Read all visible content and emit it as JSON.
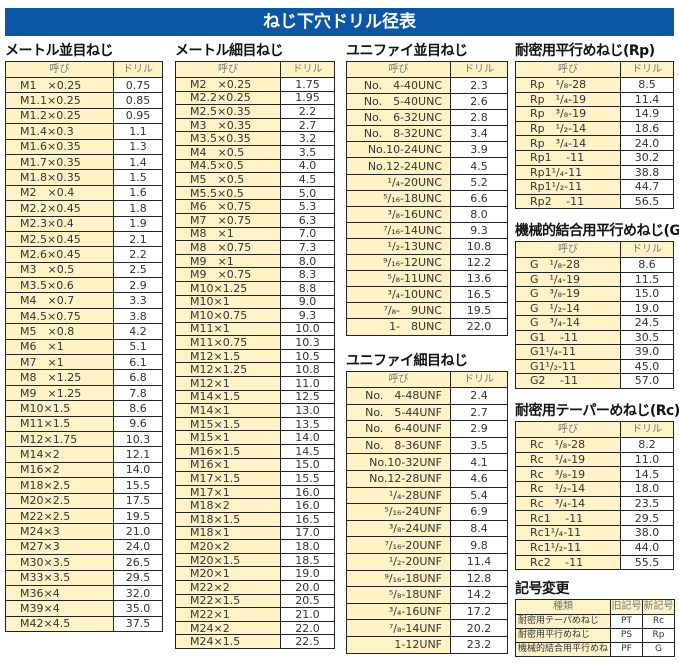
{
  "title": "ねじ下穴ドリル径表",
  "header": {
    "name": "呼び",
    "drill": "ドリル"
  },
  "tables": [
    {
      "title": "メートル並目ねじ",
      "rows": [
        [
          "M1　×0.25",
          "0.75"
        ],
        [
          "M1.1×0.25",
          "0.85"
        ],
        [
          "M1.2×0.25",
          "0.95"
        ],
        [
          "M1.4×0.3",
          "1.1"
        ],
        [
          "M1.6×0.35",
          "1.3"
        ],
        [
          "M1.7×0.35",
          "1.4"
        ],
        [
          "M1.8×0.35",
          "1.5"
        ],
        [
          "M2　×0.4",
          "1.6"
        ],
        [
          "M2.2×0.45",
          "1.8"
        ],
        [
          "M2.3×0.4",
          "1.9"
        ],
        [
          "M2.5×0.45",
          "2.1"
        ],
        [
          "M2.6×0.45",
          "2.2"
        ],
        [
          "M3　×0.5",
          "2.5"
        ],
        [
          "M3.5×0.6",
          "2.9"
        ],
        [
          "M4　×0.7",
          "3.3"
        ],
        [
          "M4.5×0.75",
          "3.8"
        ],
        [
          "M5　×0.8",
          "4.2"
        ],
        [
          "M6　×1",
          "5.1"
        ],
        [
          "M7　×1",
          "6.1"
        ],
        [
          "M8　×1.25",
          "6.8"
        ],
        [
          "M9　×1.25",
          "7.8"
        ],
        [
          "M10×1.5",
          "8.6"
        ],
        [
          "M11×1.5",
          "9.6"
        ],
        [
          "M12×1.75",
          "10.3"
        ],
        [
          "M14×2",
          "12.1"
        ],
        [
          "M16×2",
          "14.0"
        ],
        [
          "M18×2.5",
          "15.5"
        ],
        [
          "M20×2.5",
          "17.5"
        ],
        [
          "M22×2.5",
          "19.5"
        ],
        [
          "M24×3",
          "21.0"
        ],
        [
          "M27×3",
          "24.0"
        ],
        [
          "M30×3.5",
          "26.5"
        ],
        [
          "M33×3.5",
          "29.5"
        ],
        [
          "M36×4",
          "32.0"
        ],
        [
          "M39×4",
          "35.0"
        ],
        [
          "M42×4.5",
          "37.5"
        ]
      ]
    },
    {
      "title": "メートル細目ねじ",
      "rows": [
        [
          "M2　×0.25",
          "1.75"
        ],
        [
          "M2.2×0.25",
          "1.95"
        ],
        [
          "M2.5×0.35",
          "2.2"
        ],
        [
          "M3　×0.35",
          "2.7"
        ],
        [
          "M3.5×0.35",
          "3.2"
        ],
        [
          "M4　×0.5",
          "3.5"
        ],
        [
          "M4.5×0.5",
          "4.0"
        ],
        [
          "M5　×0.5",
          "4.5"
        ],
        [
          "M5.5×0.5",
          "5.0"
        ],
        [
          "M6　×0.75",
          "5.3"
        ],
        [
          "M7　×0.75",
          "6.3"
        ],
        [
          "M8　×1",
          "7.0"
        ],
        [
          "M8　×0.75",
          "7.3"
        ],
        [
          "M9　×1",
          "8.0"
        ],
        [
          "M9　×0.75",
          "8.3"
        ],
        [
          "M10×1.25",
          "8.8"
        ],
        [
          "M10×1",
          "9.0"
        ],
        [
          "M10×0.75",
          "9.3"
        ],
        [
          "M11×1",
          "10.0"
        ],
        [
          "M11×0.75",
          "10.3"
        ],
        [
          "M12×1.5",
          "10.5"
        ],
        [
          "M12×1.25",
          "10.8"
        ],
        [
          "M12×1",
          "11.0"
        ],
        [
          "M14×1.5",
          "12.5"
        ],
        [
          "M14×1",
          "13.0"
        ],
        [
          "M15×1.5",
          "13.5"
        ],
        [
          "M15×1",
          "14.0"
        ],
        [
          "M16×1.5",
          "14.5"
        ],
        [
          "M16×1",
          "15.0"
        ],
        [
          "M17×1.5",
          "15.5"
        ],
        [
          "M17×1",
          "16.0"
        ],
        [
          "M18×2",
          "16.0"
        ],
        [
          "M18×1.5",
          "16.5"
        ],
        [
          "M18×1",
          "17.0"
        ],
        [
          "M20×2",
          "18.0"
        ],
        [
          "M20×1.5",
          "18.5"
        ],
        [
          "M20×1",
          "19.0"
        ],
        [
          "M22×2",
          "20.0"
        ],
        [
          "M22×1.5",
          "20.5"
        ],
        [
          "M22×1",
          "21.0"
        ],
        [
          "M24×2",
          "22.0"
        ],
        [
          "M24×1.5",
          "22.5"
        ]
      ]
    },
    {
      "title": "ユニファイ並目ねじ",
      "rows": [
        [
          "No.　4-40UNC",
          "2.3"
        ],
        [
          "No.　5-40UNC",
          "2.6"
        ],
        [
          "No.　6-32UNC",
          "2.8"
        ],
        [
          "No.　8-32UNC",
          "3.4"
        ],
        [
          "No.10-24UNC",
          "3.9"
        ],
        [
          "No.12-24UNC",
          "4.5"
        ],
        [
          "¹/₄-20UNC",
          "5.2"
        ],
        [
          "⁵/₁₆-18UNC",
          "6.6"
        ],
        [
          "³/₈-16UNC",
          "8.0"
        ],
        [
          "⁷/₁₆-14UNC",
          "9.3"
        ],
        [
          "¹/₂-13UNC",
          "10.8"
        ],
        [
          "⁹/₁₆-12UNC",
          "12.2"
        ],
        [
          "⁵/₈-11UNC",
          "13.6"
        ],
        [
          "³/₄-10UNC",
          "16.5"
        ],
        [
          "⁷/₈-　9UNC",
          "19.5"
        ],
        [
          "1-　8UNC",
          "22.0"
        ]
      ]
    },
    {
      "title": "ユニファイ細目ねじ",
      "rows": [
        [
          "No.　4-48UNF",
          "2.4"
        ],
        [
          "No.　5-44UNF",
          "2.7"
        ],
        [
          "No.　6-40UNF",
          "2.9"
        ],
        [
          "No.　8-36UNF",
          "3.5"
        ],
        [
          "No.10-32UNF",
          "4.1"
        ],
        [
          "No.12-28UNF",
          "4.6"
        ],
        [
          "¹/₄-28UNF",
          "5.4"
        ],
        [
          "⁵/₁₆-24UNF",
          "6.9"
        ],
        [
          "³/₈-24UNF",
          "8.4"
        ],
        [
          "⁷/₁₆-20UNF",
          "9.8"
        ],
        [
          "¹/₂-20UNF",
          "11.4"
        ],
        [
          "⁹/₁₆-18UNF",
          "12.8"
        ],
        [
          "⁵/₈-18UNF",
          "14.2"
        ],
        [
          "³/₄-16UNF",
          "17.2"
        ],
        [
          "⁷/₈-14UNF",
          "20.2"
        ],
        [
          "1-12UNF",
          "23.2"
        ]
      ]
    },
    {
      "title": "耐密用平行めねじ(Rp)",
      "rows": [
        [
          "Rp　¹/₈-28",
          "8.5"
        ],
        [
          "Rp　¹/₄-19",
          "11.4"
        ],
        [
          "Rp　³/₈-19",
          "14.9"
        ],
        [
          "Rp　¹/₂-14",
          "18.6"
        ],
        [
          "Rp　³/₄-14",
          "24.0"
        ],
        [
          "Rp1　 -11",
          "30.2"
        ],
        [
          "Rp1¹/₄-11",
          "38.8"
        ],
        [
          "Rp1¹/₂-11",
          "44.7"
        ],
        [
          "Rp2　 -11",
          "56.5"
        ]
      ]
    },
    {
      "title": "機械的結合用平行めねじ(G)",
      "rows": [
        [
          "G　¹/₈-28",
          "8.6"
        ],
        [
          "G　¹/₄-19",
          "11.5"
        ],
        [
          "G　³/₈-19",
          "15.0"
        ],
        [
          "G　¹/₂-14",
          "19.0"
        ],
        [
          "G　³/₄-14",
          "24.5"
        ],
        [
          "G1　 -11",
          "30.5"
        ],
        [
          "G1¹/₄-11",
          "39.0"
        ],
        [
          "G1¹/₂-11",
          "45.0"
        ],
        [
          "G2　 -11",
          "57.0"
        ]
      ]
    },
    {
      "title": "耐密用テーパーめねじ(Rc)",
      "rows": [
        [
          "Rc　¹/₈-28",
          "8.2"
        ],
        [
          "Rc　¹/₄-19",
          "11.0"
        ],
        [
          "Rc　³/₈-19",
          "14.5"
        ],
        [
          "Rc　¹/₂-14",
          "18.0"
        ],
        [
          "Rc　³/₄-14",
          "23.5"
        ],
        [
          "Rc1　 -11",
          "29.5"
        ],
        [
          "Rc1¹/₄-11",
          "38.0"
        ],
        [
          "Rc1¹/₂-11",
          "44.0"
        ],
        [
          "Rc2　 -11",
          "55.5"
        ]
      ]
    }
  ],
  "legend": {
    "title": "記号変更",
    "headers": [
      "種類",
      "旧記号",
      "新記号"
    ],
    "rows": [
      [
        "耐密用テーパめねじ",
        "PT",
        "Rc"
      ],
      [
        "耐密用平行めねじ",
        "PS",
        "Rp"
      ],
      [
        "機械的結合用平行めねじ",
        "PF",
        "G"
      ]
    ]
  }
}
